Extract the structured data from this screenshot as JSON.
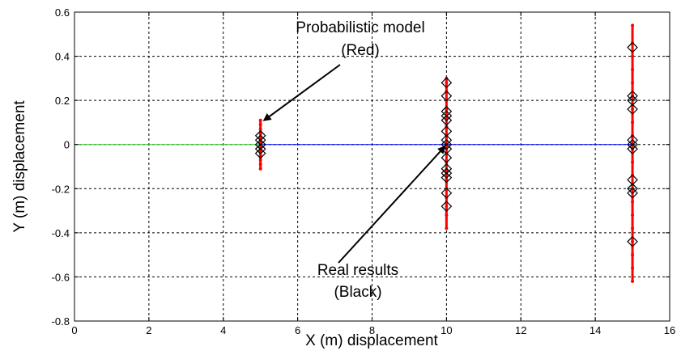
{
  "chart_data": {
    "type": "scatter",
    "title": "",
    "xlabel": "X (m) displacement",
    "ylabel": "Y (m) displacement",
    "xlim": [
      0,
      16
    ],
    "ylim": [
      -0.8,
      0.6
    ],
    "xticks": [
      "0",
      "2",
      "4",
      "6",
      "8",
      "10",
      "12",
      "14",
      "16"
    ],
    "yticks": [
      "0.6",
      "0.4",
      "0.2",
      "0",
      "-0.2",
      "-0.4",
      "-0.6",
      "-0.8"
    ],
    "grid": true,
    "lines": [
      {
        "color": "#33cc33",
        "x": [
          0,
          5
        ],
        "y": [
          0,
          0
        ]
      },
      {
        "color": "#0000ff",
        "x": [
          5,
          15
        ],
        "y": [
          0,
          0
        ]
      }
    ],
    "series": [
      {
        "marker": "dot",
        "color": "#ff0000",
        "groups": [
          {
            "x": 5,
            "y": [
              -0.11,
              -0.09,
              -0.07,
              -0.05,
              -0.03,
              -0.01,
              0.01,
              0.03,
              0.05,
              0.07,
              0.09,
              0.11
            ]
          },
          {
            "x": 10,
            "y": [
              -0.38,
              -0.32,
              -0.28,
              -0.24,
              -0.2,
              -0.16,
              -0.12,
              -0.08,
              -0.04,
              0.0,
              0.04,
              0.08,
              0.12,
              0.16,
              0.2,
              0.24,
              0.28,
              0.3
            ]
          },
          {
            "x": 15,
            "y": [
              -0.62,
              -0.56,
              -0.5,
              -0.44,
              -0.38,
              -0.32,
              -0.26,
              -0.2,
              -0.14,
              -0.08,
              -0.02,
              0.04,
              0.1,
              0.16,
              0.22,
              0.28,
              0.34,
              0.4,
              0.46,
              0.54
            ]
          }
        ]
      },
      {
        "marker": "diamond",
        "color": "#000000",
        "groups": [
          {
            "x": 5,
            "y": [
              -0.04,
              -0.02,
              0.0,
              0.02,
              0.04
            ]
          },
          {
            "x": 10,
            "y": [
              -0.28,
              -0.22,
              -0.15,
              -0.13,
              -0.11,
              -0.06,
              -0.02,
              0.0,
              0.02,
              0.06,
              0.11,
              0.13,
              0.15,
              0.22,
              0.28
            ]
          },
          {
            "x": 15,
            "y": [
              -0.44,
              -0.22,
              -0.2,
              -0.16,
              -0.02,
              0.0,
              0.02,
              0.16,
              0.2,
              0.22,
              0.44
            ]
          }
        ]
      }
    ],
    "annotations": [
      {
        "lines": [
          "Probabilistic model",
          "(Red)"
        ],
        "arrow_to": [
          5.1,
          0.11
        ]
      },
      {
        "lines": [
          "Real results",
          "(Black)"
        ],
        "arrow_to": [
          9.95,
          -0.01
        ]
      }
    ]
  }
}
